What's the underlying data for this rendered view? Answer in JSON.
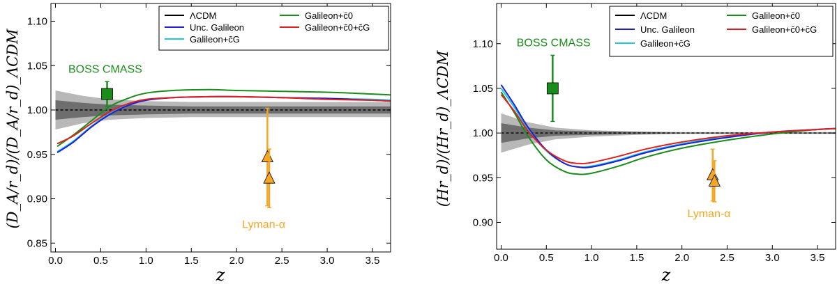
{
  "chart_data": [
    {
      "type": "line",
      "xlabel": "z",
      "ylabel": "(D_A/r_d)/(D_A/r_d)_ΛCDM",
      "xlim": [
        -0.05,
        3.7
      ],
      "ylim": [
        0.84,
        1.12
      ],
      "xticks": [
        0.0,
        0.5,
        1.0,
        1.5,
        2.0,
        2.5,
        3.0,
        3.5
      ],
      "xtick_labels": [
        "0.0",
        "0.5",
        "1.0",
        "1.5",
        "2.0",
        "2.5",
        "3.0",
        "3.5"
      ],
      "yticks": [
        0.85,
        0.9,
        0.95,
        1.0,
        1.05,
        1.1
      ],
      "ytick_labels": [
        "0.85",
        "0.90",
        "0.95",
        "1.00",
        "1.05",
        "1.10"
      ],
      "legend_position": "top-right",
      "legend": [
        {
          "label": "ΛCDM",
          "color": "#000000"
        },
        {
          "label": "Unc. Galileon",
          "color": "#1f1fd6"
        },
        {
          "label": "Galileon+c̄G",
          "color": "#1ec8d8"
        },
        {
          "label": "Galileon+c̄0",
          "color": "#1a8c1a"
        },
        {
          "label": "Galileon+c̄0+c̄G",
          "color": "#e02020"
        }
      ],
      "band_outer": {
        "x": [
          0.0,
          0.3,
          0.6,
          1.0,
          1.5,
          2.0,
          2.5,
          3.0,
          3.7
        ],
        "lo": [
          0.978,
          0.985,
          0.989,
          0.991,
          0.992,
          0.992,
          0.992,
          0.992,
          0.992
        ],
        "hi": [
          1.022,
          1.016,
          1.012,
          1.01,
          1.009,
          1.009,
          1.009,
          1.009,
          1.009
        ]
      },
      "band_inner": {
        "x": [
          0.0,
          0.3,
          0.6,
          1.0,
          1.5,
          2.0,
          2.5,
          3.0,
          3.7
        ],
        "lo": [
          0.989,
          0.992,
          0.994,
          0.995,
          0.996,
          0.996,
          0.996,
          0.996,
          0.996
        ],
        "hi": [
          1.011,
          1.008,
          1.006,
          1.005,
          1.004,
          1.004,
          1.004,
          1.004,
          1.004
        ]
      },
      "series": [
        {
          "name": "ΛCDM",
          "color": "#000000",
          "x": [
            0.0,
            3.7
          ],
          "y": [
            1.0,
            1.0
          ]
        },
        {
          "name": "Galileon+c̄0",
          "color": "#1a8c1a",
          "x": [
            0.02,
            0.2,
            0.4,
            0.6,
            0.8,
            1.0,
            1.3,
            1.7,
            2.0,
            2.5,
            3.0,
            3.5,
            3.7
          ],
          "y": [
            0.959,
            0.972,
            0.988,
            1.004,
            1.013,
            1.019,
            1.022,
            1.023,
            1.022,
            1.021,
            1.02,
            1.018,
            1.017
          ]
        },
        {
          "name": "Galileon+c̄G",
          "color": "#1ec8d8",
          "x": [
            0.02,
            0.2,
            0.4,
            0.6,
            0.8,
            1.0,
            1.3,
            1.7,
            2.0,
            2.5,
            3.0,
            3.5,
            3.7
          ],
          "y": [
            0.953,
            0.965,
            0.982,
            0.996,
            1.006,
            1.011,
            1.014,
            1.015,
            1.015,
            1.014,
            1.013,
            1.012,
            1.011
          ]
        },
        {
          "name": "Unc. Galileon",
          "color": "#1f1fd6",
          "x": [
            0.02,
            0.2,
            0.4,
            0.6,
            0.8,
            1.0,
            1.3,
            1.7,
            2.0,
            2.5,
            3.0,
            3.5,
            3.7
          ],
          "y": [
            0.952,
            0.964,
            0.981,
            0.995,
            1.005,
            1.011,
            1.014,
            1.015,
            1.015,
            1.014,
            1.013,
            1.011,
            1.01
          ]
        },
        {
          "name": "Galileon+c̄0+c̄G",
          "color": "#e02020",
          "x": [
            0.02,
            0.2,
            0.4,
            0.6,
            0.8,
            1.0,
            1.3,
            1.7,
            2.0,
            2.5,
            3.0,
            3.5,
            3.7
          ],
          "y": [
            0.962,
            0.971,
            0.985,
            0.998,
            1.007,
            1.012,
            1.014,
            1.015,
            1.015,
            1.014,
            1.012,
            1.011,
            1.01
          ]
        }
      ],
      "points": [
        {
          "label": "BOSS CMASS",
          "marker": "square",
          "color": "#1a8c1a",
          "x": 0.57,
          "y": 1.018,
          "yerr": 0.014
        },
        {
          "label": "Lyman-α",
          "marker": "triangle",
          "color": "#f5a623",
          "x": 2.34,
          "y": 0.947,
          "yerr": 0.055
        },
        {
          "label": "",
          "marker": "triangle",
          "color": "#f5a623",
          "x": 2.36,
          "y": 0.923,
          "yerr": 0.033
        }
      ],
      "annotations": [
        {
          "text": "BOSS CMASS",
          "color": "#1a8c1a",
          "x": 0.55,
          "y": 1.042
        },
        {
          "text": "Lyman-α",
          "color": "#f5a623",
          "x": 2.3,
          "y": 0.867
        }
      ]
    },
    {
      "type": "line",
      "xlabel": "z",
      "ylabel": "(Hr_d)/(Hr_d)_ΛCDM",
      "xlim": [
        -0.05,
        3.7
      ],
      "ylim": [
        0.87,
        1.145
      ],
      "xticks": [
        0.0,
        0.5,
        1.0,
        1.5,
        2.0,
        2.5,
        3.0,
        3.5
      ],
      "xtick_labels": [
        "0.0",
        "0.5",
        "1.0",
        "1.5",
        "2.0",
        "2.5",
        "3.0",
        "3.5"
      ],
      "yticks": [
        0.9,
        0.95,
        1.0,
        1.05,
        1.1
      ],
      "ytick_labels": [
        "0.90",
        "0.95",
        "1.00",
        "1.05",
        "1.10"
      ],
      "legend_position": "top-right",
      "legend": [
        {
          "label": "ΛCDM",
          "color": "#000000"
        },
        {
          "label": "Unc. Galileon",
          "color": "#1f1fd6"
        },
        {
          "label": "Galileon+c̄G",
          "color": "#1ec8d8"
        },
        {
          "label": "Galileon+c̄0",
          "color": "#1a8c1a"
        },
        {
          "label": "Galileon+c̄0+c̄G",
          "color": "#e02020"
        }
      ],
      "band_outer": {
        "x": [
          0.0,
          0.3,
          0.6,
          1.0,
          1.5,
          2.0,
          2.5,
          3.0,
          3.7
        ],
        "lo": [
          0.978,
          0.987,
          0.993,
          0.996,
          0.998,
          0.999,
          0.999,
          0.999,
          0.999
        ],
        "hi": [
          1.022,
          1.012,
          1.006,
          1.003,
          1.002,
          1.001,
          1.001,
          1.001,
          1.001
        ]
      },
      "band_inner": {
        "x": [
          0.0,
          0.3,
          0.6,
          1.0,
          1.5,
          2.0,
          2.5,
          3.0,
          3.7
        ],
        "lo": [
          0.989,
          0.994,
          0.997,
          0.998,
          0.999,
          0.9995,
          0.9995,
          0.9995,
          0.9995
        ],
        "hi": [
          1.011,
          1.006,
          1.003,
          1.002,
          1.001,
          1.0005,
          1.0005,
          1.0005,
          1.0005
        ]
      },
      "series": [
        {
          "name": "ΛCDM",
          "color": "#000000",
          "x": [
            0.0,
            3.7
          ],
          "y": [
            1.0,
            1.0
          ]
        },
        {
          "name": "Galileon+c̄0",
          "color": "#1a8c1a",
          "x": [
            0.0,
            0.15,
            0.3,
            0.5,
            0.7,
            0.85,
            1.0,
            1.3,
            1.6,
            2.0,
            2.5,
            3.0,
            3.5,
            3.7
          ],
          "y": [
            1.046,
            1.022,
            0.996,
            0.97,
            0.957,
            0.954,
            0.955,
            0.963,
            0.973,
            0.983,
            0.992,
            0.999,
            1.004,
            1.005
          ]
        },
        {
          "name": "Galileon+c̄G",
          "color": "#1ec8d8",
          "x": [
            0.0,
            0.15,
            0.3,
            0.5,
            0.7,
            0.85,
            1.0,
            1.3,
            1.6,
            2.0,
            2.5,
            3.0,
            3.5,
            3.7
          ],
          "y": [
            1.05,
            1.028,
            1.004,
            0.98,
            0.966,
            0.962,
            0.963,
            0.97,
            0.979,
            0.988,
            0.996,
            1.001,
            1.004,
            1.005
          ]
        },
        {
          "name": "Unc. Galileon",
          "color": "#1f1fd6",
          "x": [
            0.0,
            0.15,
            0.3,
            0.5,
            0.7,
            0.85,
            1.0,
            1.3,
            1.6,
            2.0,
            2.5,
            3.0,
            3.5,
            3.7
          ],
          "y": [
            1.054,
            1.031,
            1.006,
            0.981,
            0.966,
            0.962,
            0.962,
            0.969,
            0.978,
            0.987,
            0.995,
            1.001,
            1.004,
            1.005
          ]
        },
        {
          "name": "Galileon+c̄0+c̄G",
          "color": "#e02020",
          "x": [
            0.0,
            0.15,
            0.3,
            0.5,
            0.7,
            0.85,
            1.0,
            1.3,
            1.6,
            2.0,
            2.5,
            3.0,
            3.5,
            3.7
          ],
          "y": [
            1.043,
            1.024,
            1.002,
            0.981,
            0.969,
            0.966,
            0.967,
            0.974,
            0.982,
            0.99,
            0.997,
            1.001,
            1.004,
            1.005
          ]
        }
      ],
      "points": [
        {
          "label": "BOSS CMASS",
          "marker": "square",
          "color": "#1a8c1a",
          "x": 0.57,
          "y": 1.05,
          "yerr": 0.037
        },
        {
          "label": "Lyman-α",
          "marker": "triangle",
          "color": "#f5a623",
          "x": 2.34,
          "y": 0.953,
          "yerr": 0.029
        },
        {
          "label": "",
          "marker": "triangle",
          "color": "#f5a623",
          "x": 2.36,
          "y": 0.946,
          "yerr": 0.023
        }
      ],
      "annotations": [
        {
          "text": "BOSS CMASS",
          "color": "#1a8c1a",
          "x": 0.58,
          "y": 1.097
        },
        {
          "text": "Lyman-α",
          "color": "#f5a623",
          "x": 2.3,
          "y": 0.906
        }
      ]
    }
  ]
}
